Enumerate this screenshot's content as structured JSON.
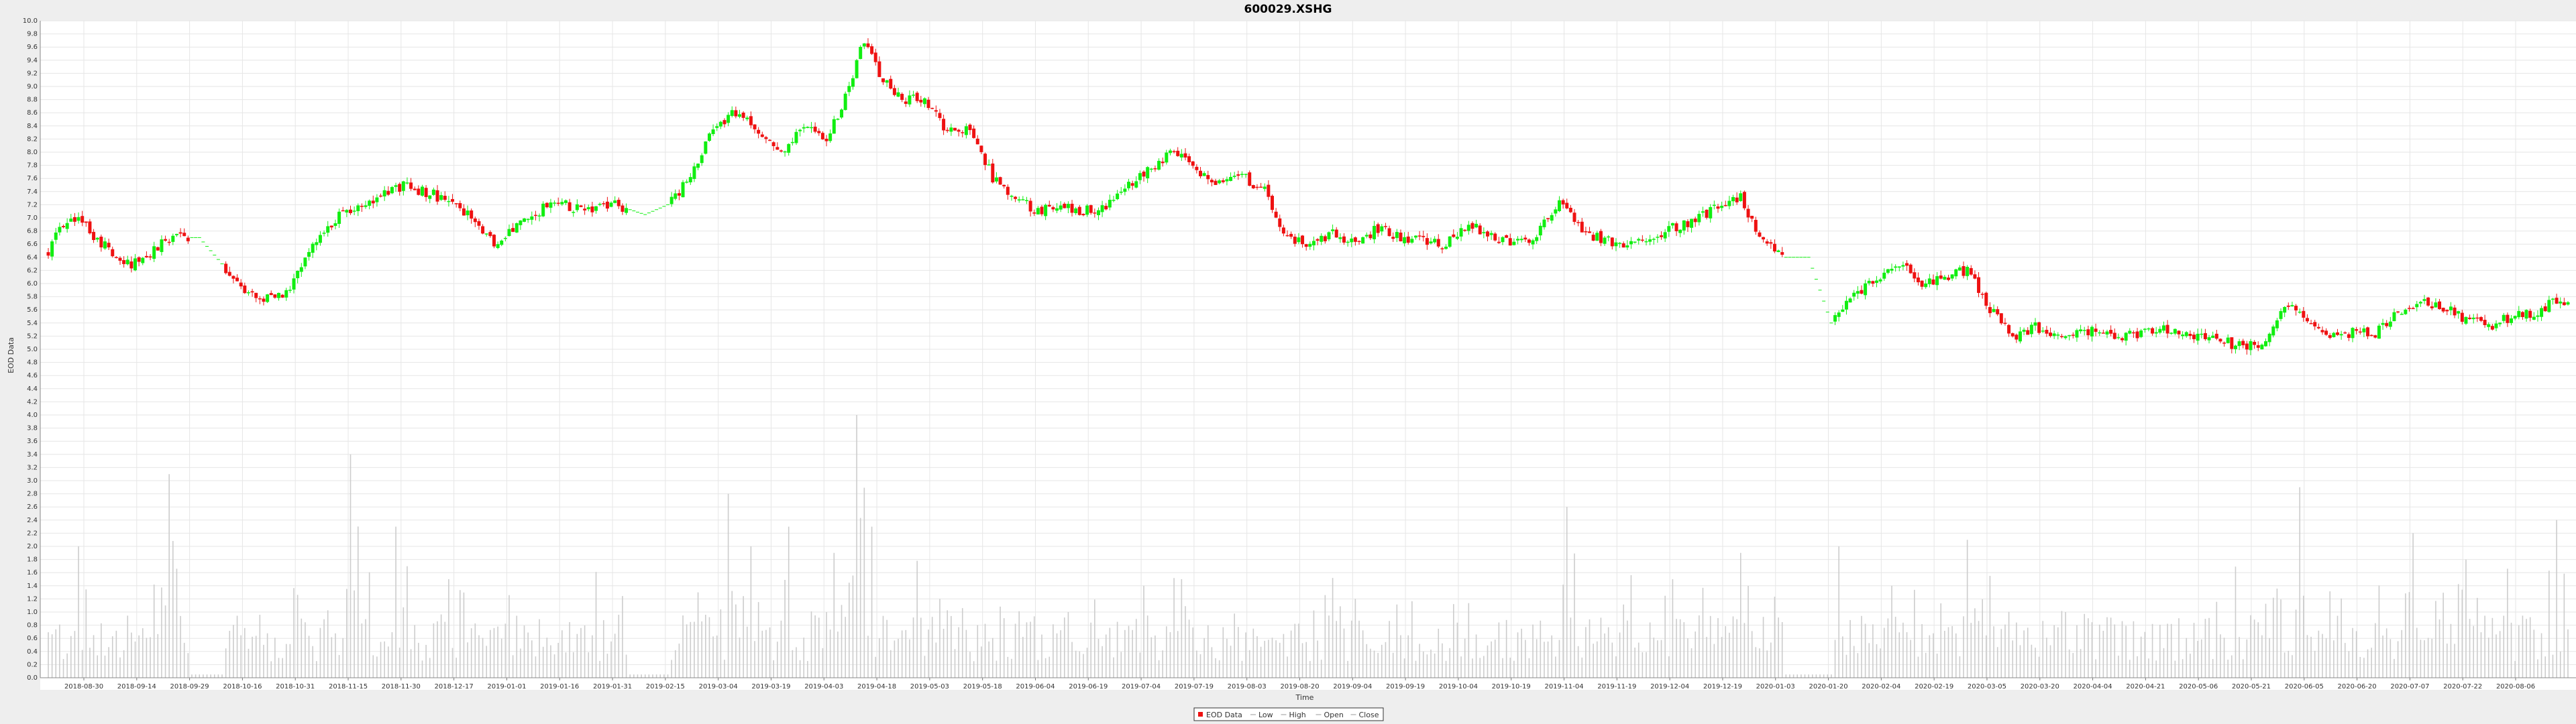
{
  "colors": {
    "up": "#11ee11",
    "down": "#ee1111",
    "volume": "#cccccc",
    "grid": "#e6e6e6",
    "plot_bg": "#ffffff",
    "page_bg": "#eeeeee"
  },
  "chart_data": {
    "type": "candlestick",
    "title": "600029.XSHG",
    "xlabel": "Time",
    "ylabel": "EOD Data",
    "ylim": [
      0.0,
      10.0
    ],
    "yticks": [
      "0.0",
      "0.2",
      "0.4",
      "0.6",
      "0.8",
      "1.0",
      "1.2",
      "1.4",
      "1.6",
      "1.8",
      "2.0",
      "2.2",
      "2.4",
      "2.6",
      "2.8",
      "3.0",
      "3.2",
      "3.4",
      "3.6",
      "3.8",
      "4.0",
      "4.2",
      "4.4",
      "4.6",
      "4.8",
      "5.0",
      "5.2",
      "5.4",
      "5.6",
      "5.8",
      "6.0",
      "6.2",
      "6.4",
      "6.6",
      "6.8",
      "7.0",
      "7.2",
      "7.4",
      "7.6",
      "7.8",
      "8.0",
      "8.2",
      "8.4",
      "8.6",
      "8.8",
      "9.0",
      "9.2",
      "9.4",
      "9.6",
      "9.8",
      "10.0"
    ],
    "date_ticks": [
      "2018-08-30",
      "2018-09-14",
      "2018-09-29",
      "2018-10-16",
      "2018-10-31",
      "2018-11-15",
      "2018-11-30",
      "2018-12-17",
      "2019-01-01",
      "2019-01-16",
      "2019-01-31",
      "2019-02-15",
      "2019-03-04",
      "2019-03-19",
      "2019-04-03",
      "2019-04-18",
      "2019-05-03",
      "2019-05-18",
      "2019-06-04",
      "2019-06-19",
      "2019-07-04",
      "2019-07-19",
      "2019-08-03",
      "2019-08-20",
      "2019-09-04",
      "2019-09-19",
      "2019-10-04",
      "2019-10-19",
      "2019-11-04",
      "2019-11-19",
      "2019-12-04",
      "2019-12-19",
      "2020-01-03",
      "2020-01-20",
      "2020-02-04",
      "2020-02-19",
      "2020-03-05",
      "2020-03-20",
      "2020-04-04",
      "2020-04-21",
      "2020-05-06",
      "2020-05-21",
      "2020-06-05",
      "2020-06-20",
      "2020-07-07",
      "2020-07-22",
      "2020-08-06"
    ],
    "close_anchors": [
      [
        0,
        6.5
      ],
      [
        3,
        6.8
      ],
      [
        8,
        7.0
      ],
      [
        14,
        6.6
      ],
      [
        22,
        6.3
      ],
      [
        28,
        6.5
      ],
      [
        32,
        6.7
      ],
      [
        40,
        6.7
      ],
      [
        46,
        6.3
      ],
      [
        52,
        5.8
      ],
      [
        58,
        5.8
      ],
      [
        64,
        5.9
      ],
      [
        70,
        6.6
      ],
      [
        78,
        7.1
      ],
      [
        86,
        7.3
      ],
      [
        94,
        7.5
      ],
      [
        102,
        7.35
      ],
      [
        110,
        7.1
      ],
      [
        118,
        6.6
      ],
      [
        126,
        6.95
      ],
      [
        134,
        7.25
      ],
      [
        142,
        7.1
      ],
      [
        150,
        7.2
      ],
      [
        158,
        7.05
      ],
      [
        164,
        7.2
      ],
      [
        170,
        7.6
      ],
      [
        176,
        8.4
      ],
      [
        182,
        8.6
      ],
      [
        188,
        8.3
      ],
      [
        194,
        8.0
      ],
      [
        200,
        8.4
      ],
      [
        206,
        8.2
      ],
      [
        210,
        8.7
      ],
      [
        216,
        9.7
      ],
      [
        220,
        9.2
      ],
      [
        226,
        8.8
      ],
      [
        232,
        8.8
      ],
      [
        238,
        8.3
      ],
      [
        244,
        8.4
      ],
      [
        250,
        7.6
      ],
      [
        256,
        7.3
      ],
      [
        262,
        7.1
      ],
      [
        268,
        7.2
      ],
      [
        274,
        7.1
      ],
      [
        280,
        7.15
      ],
      [
        286,
        7.5
      ],
      [
        292,
        7.8
      ],
      [
        298,
        8.0
      ],
      [
        304,
        7.7
      ],
      [
        310,
        7.55
      ],
      [
        316,
        7.65
      ],
      [
        322,
        7.4
      ],
      [
        328,
        6.7
      ],
      [
        334,
        6.6
      ],
      [
        340,
        6.75
      ],
      [
        346,
        6.6
      ],
      [
        352,
        6.85
      ],
      [
        358,
        6.7
      ],
      [
        364,
        6.65
      ],
      [
        370,
        6.6
      ],
      [
        376,
        6.9
      ],
      [
        382,
        6.7
      ],
      [
        388,
        6.6
      ],
      [
        394,
        6.7
      ],
      [
        400,
        7.3
      ],
      [
        406,
        6.8
      ],
      [
        412,
        6.65
      ],
      [
        418,
        6.6
      ],
      [
        424,
        6.6
      ],
      [
        430,
        6.85
      ],
      [
        436,
        6.95
      ],
      [
        442,
        7.2
      ],
      [
        448,
        7.3
      ],
      [
        454,
        6.6
      ],
      [
        460,
        6.4
      ],
      [
        466,
        6.4
      ],
      [
        472,
        5.4
      ],
      [
        478,
        5.8
      ],
      [
        484,
        6.1
      ],
      [
        490,
        6.3
      ],
      [
        496,
        6.0
      ],
      [
        502,
        6.1
      ],
      [
        508,
        6.2
      ],
      [
        514,
        5.6
      ],
      [
        520,
        5.2
      ],
      [
        526,
        5.35
      ],
      [
        532,
        5.2
      ],
      [
        538,
        5.3
      ],
      [
        544,
        5.25
      ],
      [
        550,
        5.2
      ],
      [
        556,
        5.25
      ],
      [
        562,
        5.3
      ],
      [
        568,
        5.2
      ],
      [
        574,
        5.15
      ],
      [
        580,
        5.05
      ],
      [
        586,
        5.1
      ],
      [
        592,
        5.7
      ],
      [
        598,
        5.4
      ],
      [
        604,
        5.25
      ],
      [
        610,
        5.25
      ],
      [
        616,
        5.25
      ],
      [
        622,
        5.6
      ],
      [
        628,
        5.7
      ],
      [
        634,
        5.65
      ],
      [
        640,
        5.45
      ],
      [
        646,
        5.35
      ],
      [
        652,
        5.5
      ],
      [
        658,
        5.55
      ],
      [
        664,
        5.75
      ]
    ],
    "volume_peaks": [
      [
        8,
        2.0
      ],
      [
        32,
        3.1
      ],
      [
        80,
        3.4
      ],
      [
        92,
        2.3
      ],
      [
        106,
        1.5
      ],
      [
        172,
        1.3
      ],
      [
        180,
        2.8
      ],
      [
        186,
        2.0
      ],
      [
        196,
        2.3
      ],
      [
        208,
        1.9
      ],
      [
        214,
        4.0
      ],
      [
        218,
        2.3
      ],
      [
        236,
        1.2
      ],
      [
        270,
        1.0
      ],
      [
        290,
        1.4
      ],
      [
        300,
        1.5
      ],
      [
        346,
        1.2
      ],
      [
        402,
        2.6
      ],
      [
        430,
        1.5
      ],
      [
        448,
        1.9
      ],
      [
        460,
        1.7
      ],
      [
        474,
        2.0
      ],
      [
        488,
        1.4
      ],
      [
        508,
        2.1
      ],
      [
        534,
        1.0
      ],
      [
        596,
        2.9
      ],
      [
        626,
        2.2
      ],
      [
        640,
        1.8
      ],
      [
        664,
        2.4
      ]
    ],
    "flat_gaps": [
      [
        38,
        46
      ],
      [
        154,
        164
      ],
      [
        460,
        472
      ]
    ],
    "legend": [
      "EOD Data",
      "Low",
      "High",
      "Open",
      "Close"
    ]
  }
}
